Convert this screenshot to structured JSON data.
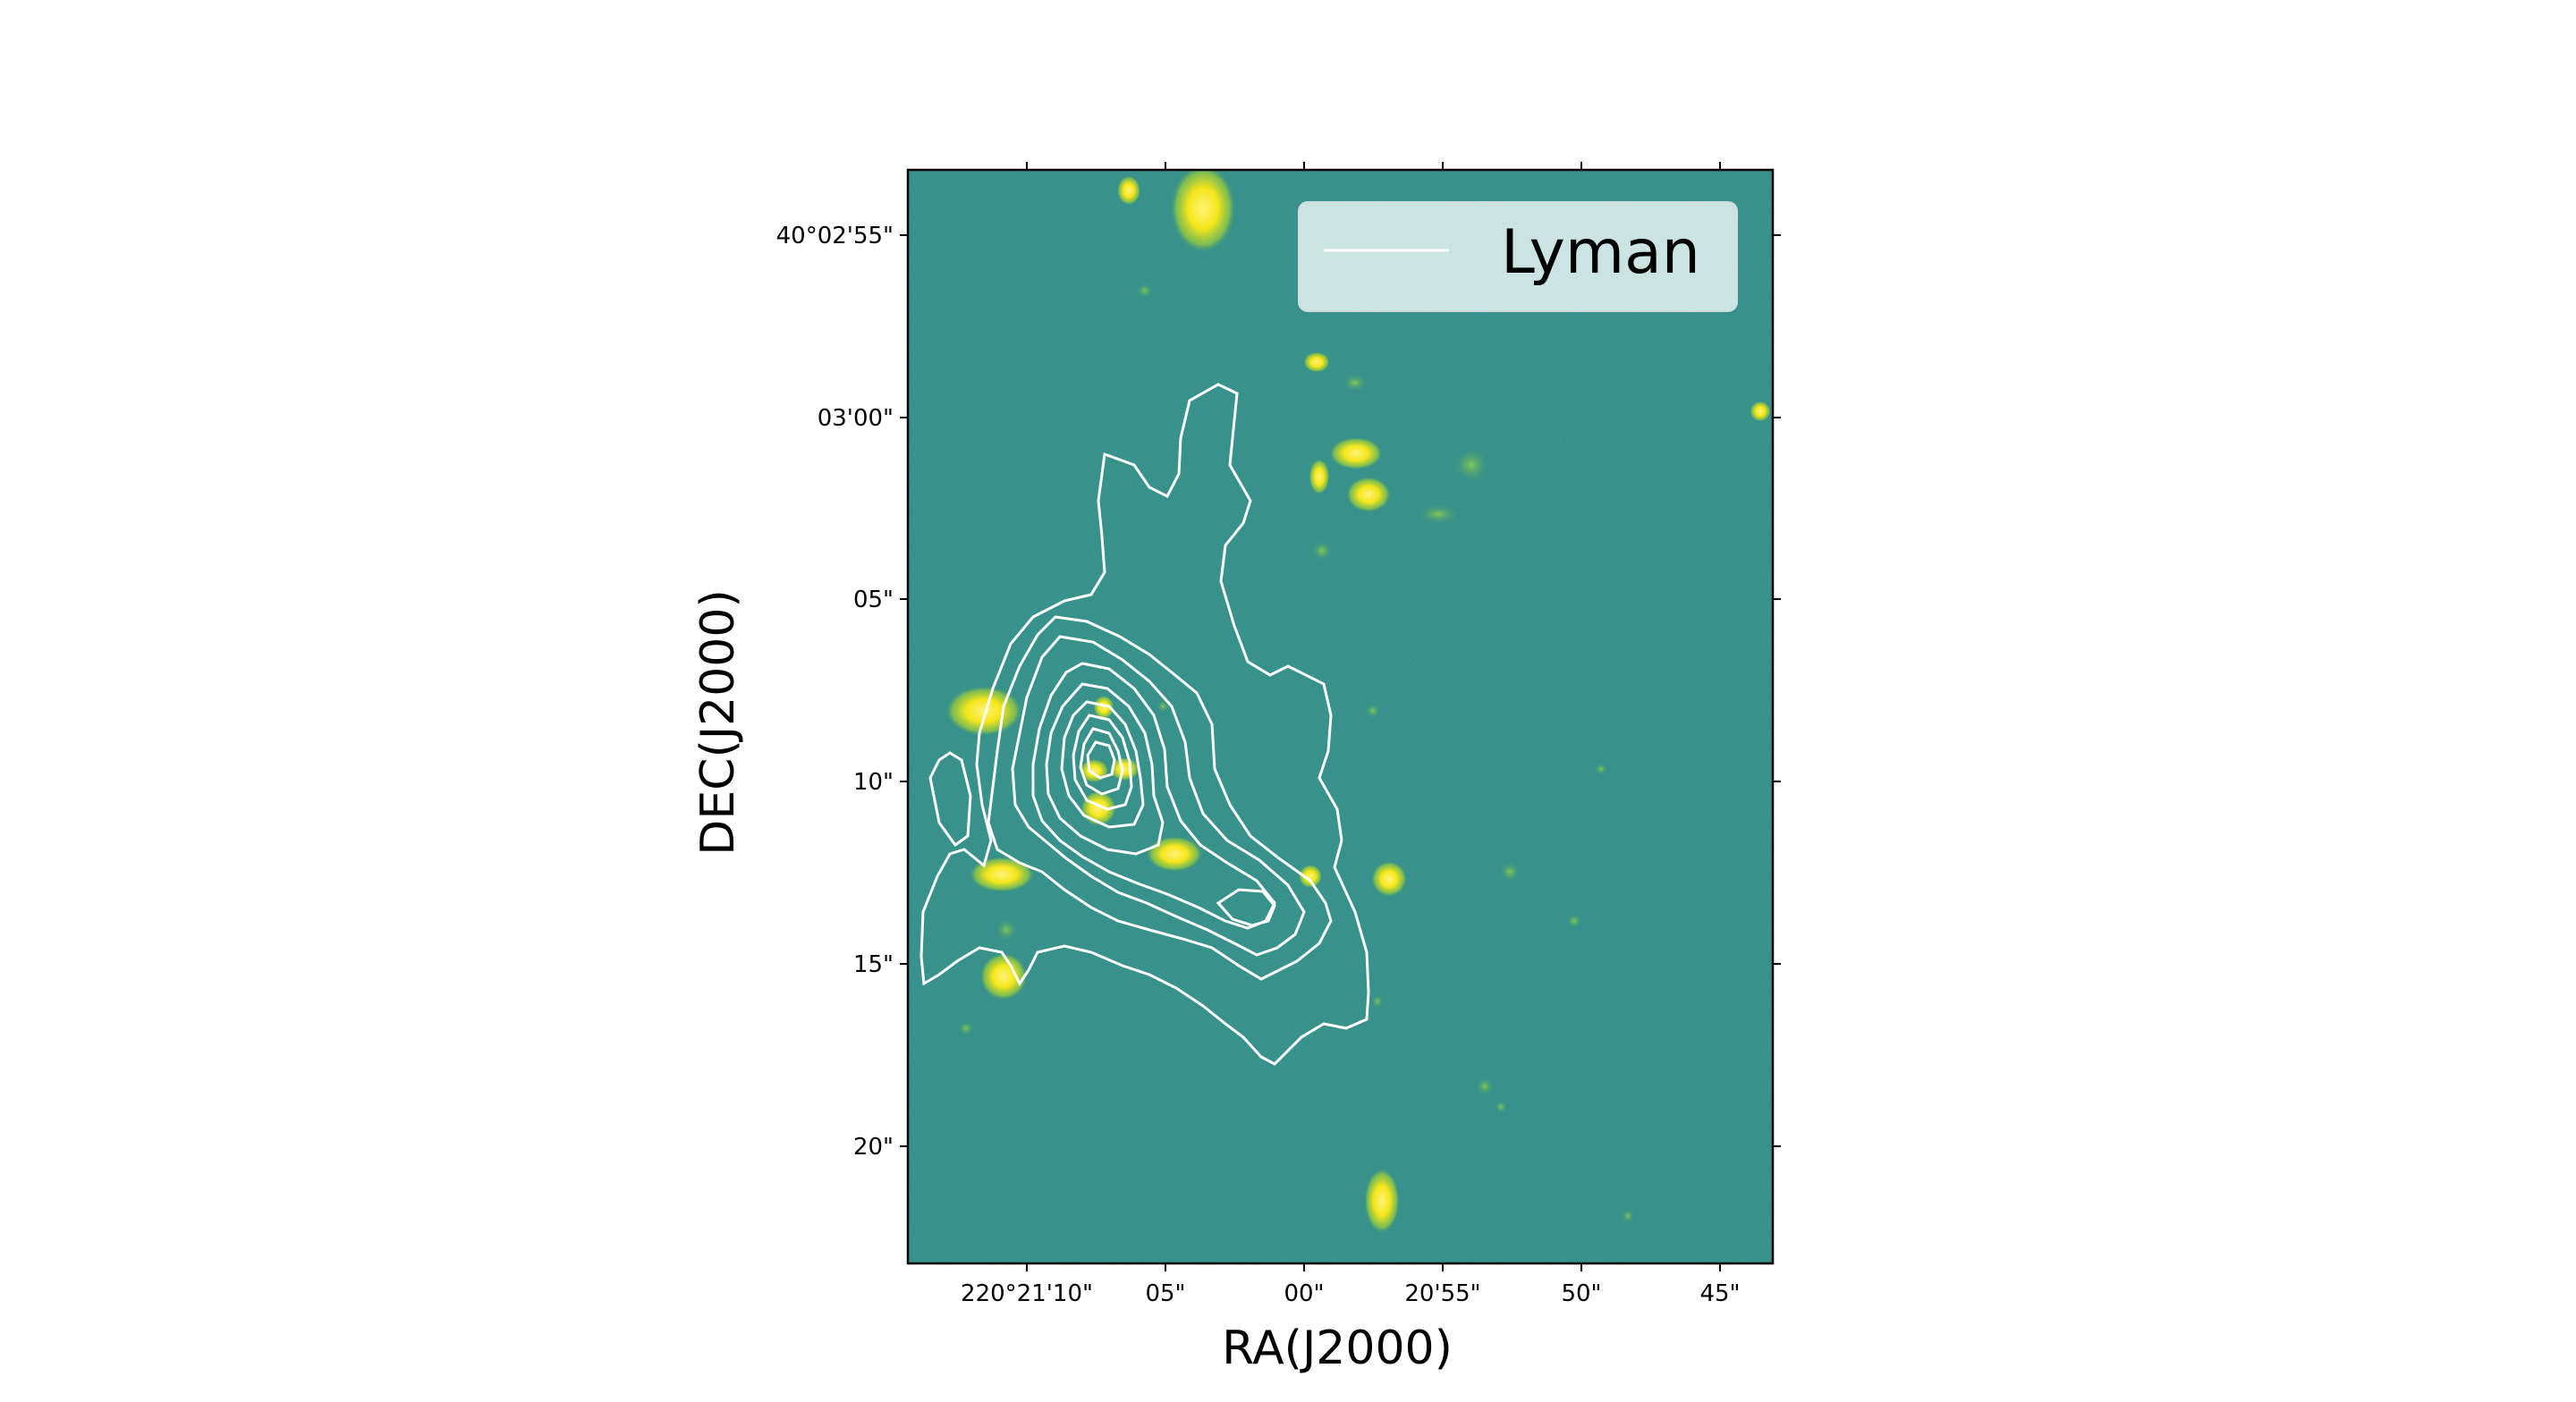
{
  "chart_data": {
    "type": "contour",
    "xlabel": "RA(J2000)",
    "ylabel": "DEC(J2000)",
    "x_ticks": [
      "220°21'10\"",
      "05\"",
      "00\"",
      "20'55\"",
      "50\"",
      "45\""
    ],
    "y_ticks": [
      "40°02'55\"",
      "03'00\"",
      "05\"",
      "10\"",
      "15\"",
      "20\""
    ],
    "legend": {
      "entries": [
        "Lyman"
      ],
      "placement": "top-right"
    },
    "contour_levels": 9,
    "colors": {
      "background": "#2a8a87",
      "sources": "#f5e61a",
      "contours": "#ffffff"
    }
  }
}
